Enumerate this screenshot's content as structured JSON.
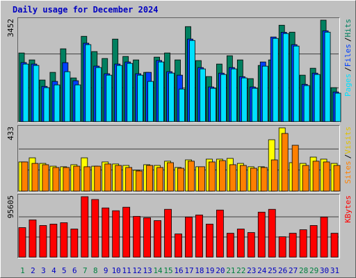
{
  "chart_data": [
    {
      "type": "bar",
      "title": "Daily usage for December 2024",
      "categories": [
        "1",
        "2",
        "3",
        "4",
        "5",
        "6",
        "7",
        "8",
        "9",
        "10",
        "11",
        "12",
        "13",
        "14",
        "15",
        "16",
        "17",
        "18",
        "19",
        "20",
        "21",
        "22",
        "23",
        "24",
        "25",
        "26",
        "27",
        "28",
        "29",
        "30",
        "31"
      ],
      "category_colors": [
        "#008040",
        "#0000c0",
        "#0000c0",
        "#0000c0",
        "#0000c0",
        "#0000c0",
        "#008040",
        "#008040",
        "#0000c0",
        "#0000c0",
        "#0000c0",
        "#0000c0",
        "#0000c0",
        "#008040",
        "#008040",
        "#0000c0",
        "#0000c0",
        "#0000c0",
        "#0000c0",
        "#0000c0",
        "#008040",
        "#008040",
        "#0000c0",
        "#0000c0",
        "#0000c0",
        "#0000c0",
        "#0000c0",
        "#008040",
        "#008040",
        "#0000c0",
        "#0000c0"
      ],
      "legend_separator": "/",
      "series": [
        {
          "name": "Hits",
          "color": "#008060",
          "values": [
            2336,
            2100,
            1416,
            1676,
            2478,
            1487,
            2903,
            2384,
            2148,
            2808,
            2218,
            2100,
            1676,
            2195,
            2336,
            2100,
            3233,
            2077,
            1534,
            1959,
            2242,
            2100,
            1463,
            1912,
            2100,
            3280,
            3044,
            1581,
            1817,
            3452,
            1156
          ]
        },
        {
          "name": "Files",
          "color": "#0040ff",
          "values": [
            2010,
            1960,
            1200,
            1369,
            2006,
            1392,
            2670,
            1890,
            1630,
            1960,
            2030,
            1630,
            1676,
            2080,
            1700,
            1581,
            2810,
            1840,
            1180,
            1650,
            1840,
            1530,
            1180,
            2030,
            2880,
            3040,
            2620,
            1270,
            1650,
            3090,
            1010
          ]
        },
        {
          "name": "Pages",
          "color": "#00e0ff",
          "values": [
            1959,
            1912,
            1156,
            1251,
            1699,
            1251,
            2620,
            1841,
            1581,
            1912,
            1982,
            1581,
            1369,
            2030,
            1652,
            1109,
            2761,
            1794,
            1133,
            1605,
            1794,
            1487,
            1133,
            1888,
            2832,
            2997,
            2572,
            1227,
            1605,
            3044,
            968
          ]
        }
      ],
      "ylim": [
        0,
        3452
      ],
      "yticks": [
        3452
      ],
      "grid": true
    },
    {
      "type": "bar",
      "series": [
        {
          "name": "Visits",
          "color": "#ffff00",
          "values": [
            200,
            228,
            190,
            171,
            167,
            181,
            228,
            171,
            200,
            186,
            176,
            143,
            181,
            176,
            205,
            162,
            214,
            167,
            219,
            219,
            224,
            190,
            167,
            167,
            352,
            433,
            195,
            190,
            233,
            219,
            190
          ]
        },
        {
          "name": "Sites",
          "color": "#ff8000",
          "values": [
            200,
            190,
            181,
            162,
            162,
            171,
            167,
            171,
            186,
            176,
            162,
            138,
            176,
            162,
            195,
            157,
            205,
            167,
            200,
            209,
            181,
            176,
            157,
            162,
            214,
            395,
            314,
            176,
            205,
            200,
            176
          ]
        }
      ],
      "ylim": [
        0,
        433
      ],
      "yticks": [
        433
      ],
      "grid": true
    },
    {
      "type": "bar",
      "series": [
        {
          "name": "KBytes",
          "color": "#ff0000",
          "values": [
            46704,
            58936,
            50040,
            52264,
            54488,
            44480,
            95605,
            91184,
            77840,
            73392,
            78952,
            64496,
            62272,
            57824,
            75616,
            36696,
            63384,
            66720,
            52264,
            74504,
            37808,
            44480,
            38920,
            71168,
            75616,
            32248,
            37808,
            43368,
            50040,
            63384,
            37808
          ]
        }
      ],
      "ylim": [
        0,
        95605
      ],
      "yticks": [
        95605
      ],
      "grid": true
    }
  ]
}
